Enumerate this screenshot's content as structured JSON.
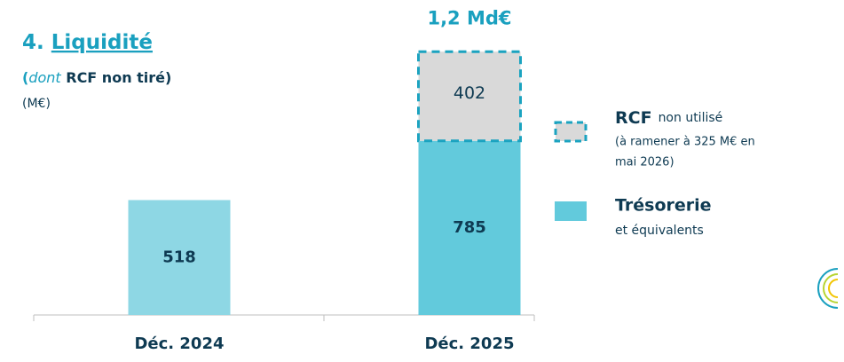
{
  "chart_data": {
    "type": "stacked_bar",
    "title_number": "4.",
    "title": "Liquidité",
    "subtitle": [
      "(",
      "dont",
      " RCF non tiré)"
    ],
    "unit": "(M€)",
    "total_label": "1,2 Md€",
    "categories": [
      "Déc. 2024",
      "Déc. 2025"
    ],
    "series": [
      {
        "name": "Trésorerie",
        "legend_note": "et équivalents",
        "colors": [
          "#8ed7e4",
          "#62cadc"
        ],
        "values": [
          518,
          785
        ]
      },
      {
        "name": "RCF",
        "legend_note": [
          "non utilisé",
          "(à ramener à 325 M€ en",
          "mai 2026)"
        ],
        "color": "#d9d9d9",
        "border": "#1ba3c0",
        "values": [
          null,
          402
        ]
      }
    ]
  }
}
